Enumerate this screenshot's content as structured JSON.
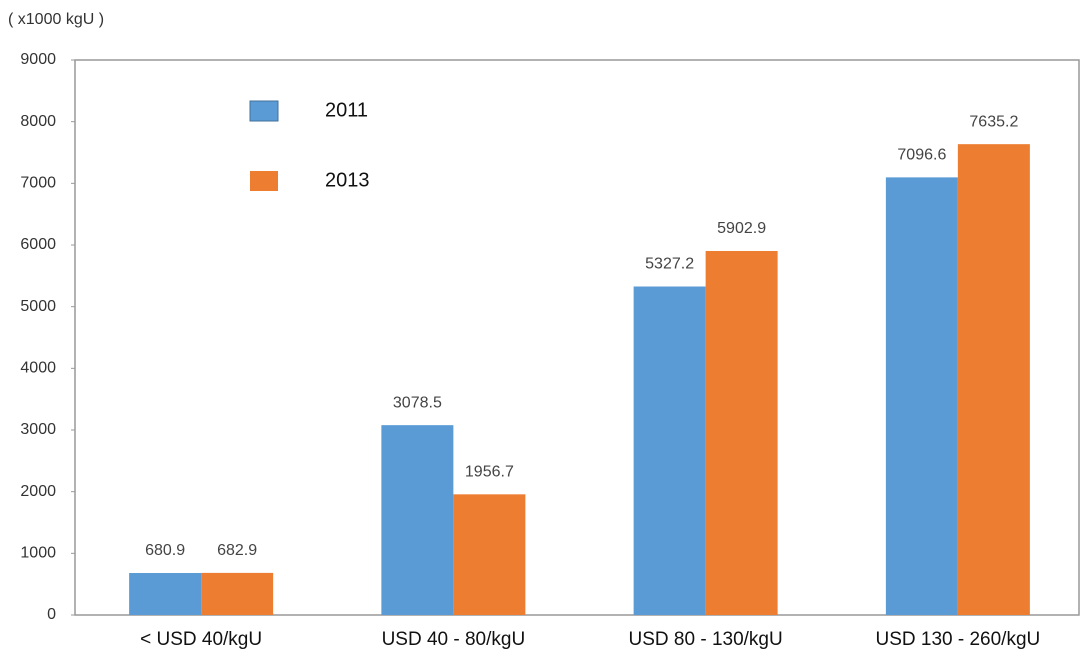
{
  "chart_data": {
    "type": "bar",
    "y_label": "( x1000 kgU )",
    "categories": [
      "< USD 40/kgU",
      "USD 40 - 80/kgU",
      "USD 80 - 130/kgU",
      "USD 130 - 260/kgU"
    ],
    "series": [
      {
        "name": "2011",
        "color": "#5b9bd5",
        "values": [
          680.9,
          3078.5,
          5327.2,
          7096.6
        ]
      },
      {
        "name": "2013",
        "color": "#ed7d31",
        "values": [
          682.9,
          1956.7,
          5902.9,
          7635.2
        ]
      }
    ],
    "ylim": [
      0,
      9000
    ],
    "yticks": [
      0,
      1000,
      2000,
      3000,
      4000,
      5000,
      6000,
      7000,
      8000,
      9000
    ],
    "legend": "upper left"
  }
}
